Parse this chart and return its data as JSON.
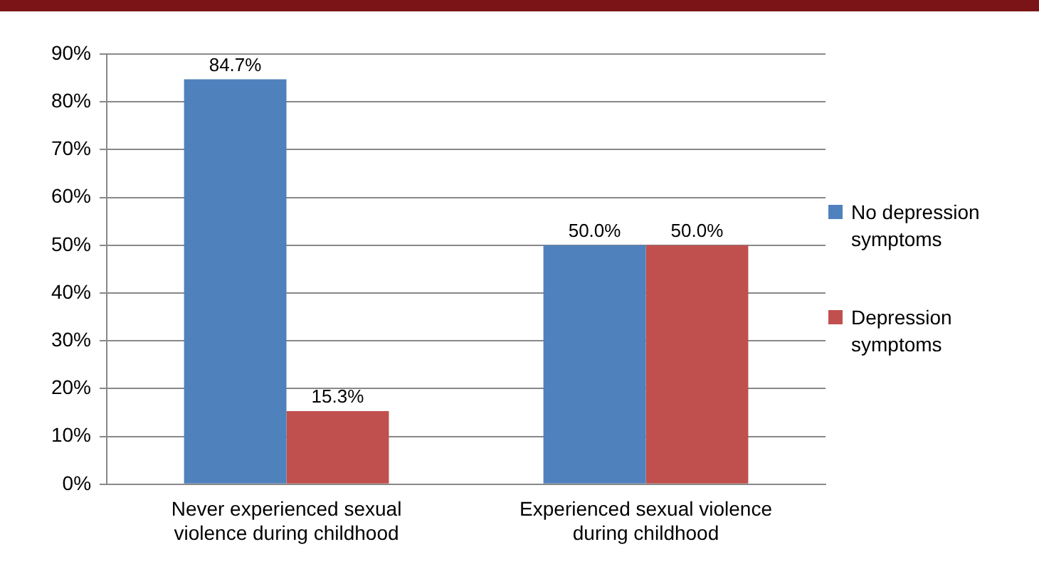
{
  "chart_data": {
    "type": "bar",
    "categories": [
      "Never experienced sexual violence during childhood",
      "Experienced sexual violence during childhood"
    ],
    "series": [
      {
        "name": "No depression symptoms",
        "color": "#4f81bd",
        "values": [
          84.7,
          50.0
        ],
        "value_labels": [
          "84.7%",
          "50.0%"
        ]
      },
      {
        "name": "Depression symptoms",
        "color": "#c0504d",
        "values": [
          15.3,
          50.0
        ],
        "value_labels": [
          "15.3%",
          "50.0%"
        ]
      }
    ],
    "ylim": [
      0,
      90
    ],
    "yticks": [
      {
        "value": 0,
        "label": "0%"
      },
      {
        "value": 10,
        "label": "10%"
      },
      {
        "value": 20,
        "label": "20%"
      },
      {
        "value": 30,
        "label": "30%"
      },
      {
        "value": 40,
        "label": "40%"
      },
      {
        "value": 50,
        "label": "50%"
      },
      {
        "value": 60,
        "label": "60%"
      },
      {
        "value": 70,
        "label": "70%"
      },
      {
        "value": 80,
        "label": "80%"
      },
      {
        "value": 90,
        "label": "90%"
      }
    ],
    "grid": "y",
    "legend": "right"
  }
}
